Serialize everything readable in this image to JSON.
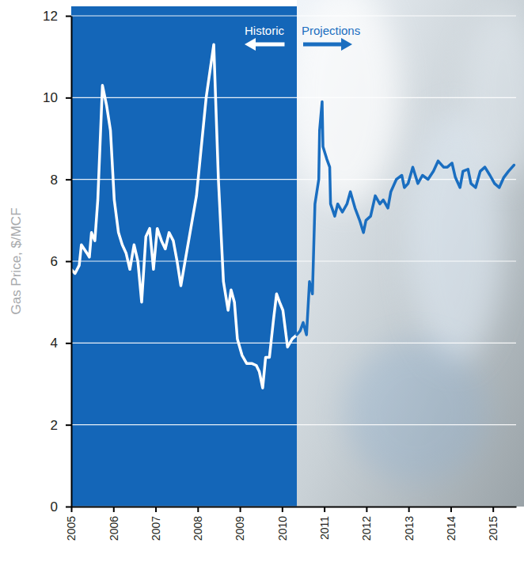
{
  "chart_data": {
    "type": "line",
    "y_label": "Gas Price, $/MCF",
    "xlim": [
      2005,
      2015.55
    ],
    "xticks": [
      2005,
      2006,
      2007,
      2008,
      2009,
      2010,
      2011,
      2012,
      2013,
      2014,
      2015
    ],
    "ylim": [
      0,
      12
    ],
    "yticks": [
      0,
      2,
      4,
      6,
      8,
      10,
      12
    ],
    "grid": true,
    "series": [
      {
        "name": "Historic",
        "color": "#ffffff",
        "x": [
          2005.0,
          2005.09,
          2005.19,
          2005.24,
          2005.37,
          2005.43,
          2005.48,
          2005.56,
          2005.63,
          2005.74,
          2005.84,
          2005.93,
          2006.02,
          2006.12,
          2006.21,
          2006.3,
          2006.39,
          2006.49,
          2006.58,
          2006.67,
          2006.77,
          2006.86,
          2006.95,
          2007.04,
          2007.14,
          2007.23,
          2007.32,
          2007.42,
          2007.51,
          2007.6,
          2007.7,
          2007.97,
          2008.2,
          2008.38,
          2008.49,
          2008.61,
          2008.72,
          2008.79,
          2008.87,
          2008.94,
          2009.05,
          2009.16,
          2009.28,
          2009.39,
          2009.46,
          2009.54,
          2009.61,
          2009.7,
          2009.8,
          2009.87,
          2009.94,
          2010.02,
          2010.13,
          2010.24,
          2010.35
        ],
        "values": [
          5.8,
          5.7,
          5.9,
          6.4,
          6.2,
          6.1,
          6.7,
          6.5,
          7.5,
          10.3,
          9.8,
          9.2,
          7.5,
          6.7,
          6.4,
          6.2,
          5.8,
          6.4,
          6.0,
          5.0,
          6.6,
          6.8,
          5.8,
          6.8,
          6.5,
          6.3,
          6.7,
          6.5,
          6.0,
          5.4,
          6.0,
          7.6,
          10.0,
          11.3,
          8.0,
          5.5,
          4.8,
          5.3,
          5.0,
          4.1,
          3.7,
          3.5,
          3.5,
          3.45,
          3.3,
          2.9,
          3.65,
          3.65,
          4.6,
          5.2,
          5.0,
          4.8,
          3.9,
          4.1,
          4.2
        ]
      },
      {
        "name": "Projections",
        "color": "#1a6ec0",
        "x": [
          2010.35,
          2010.43,
          2010.5,
          2010.58,
          2010.65,
          2010.72,
          2010.78,
          2010.87,
          2010.89,
          2010.95,
          2010.97,
          2011.06,
          2011.13,
          2011.15,
          2011.25,
          2011.32,
          2011.43,
          2011.54,
          2011.62,
          2011.73,
          2011.84,
          2011.93,
          2011.99,
          2012.1,
          2012.21,
          2012.32,
          2012.4,
          2012.51,
          2012.58,
          2012.71,
          2012.84,
          2012.9,
          2012.99,
          2013.1,
          2013.22,
          2013.33,
          2013.46,
          2013.59,
          2013.7,
          2013.83,
          2013.92,
          2014.03,
          2014.11,
          2014.22,
          2014.29,
          2014.41,
          2014.48,
          2014.59,
          2014.7,
          2014.81,
          2014.93,
          2015.04,
          2015.15,
          2015.26,
          2015.37,
          2015.5
        ],
        "values": [
          4.2,
          4.3,
          4.5,
          4.2,
          5.5,
          5.2,
          7.4,
          8.0,
          9.2,
          9.9,
          8.8,
          8.5,
          8.3,
          7.4,
          7.1,
          7.4,
          7.2,
          7.4,
          7.7,
          7.3,
          7.0,
          6.7,
          7.0,
          7.1,
          7.6,
          7.4,
          7.5,
          7.3,
          7.7,
          8.0,
          8.1,
          7.8,
          7.9,
          8.3,
          7.9,
          8.1,
          8.0,
          8.2,
          8.45,
          8.3,
          8.3,
          8.4,
          8.05,
          7.8,
          8.2,
          8.25,
          7.9,
          7.8,
          8.2,
          8.3,
          8.1,
          7.9,
          7.8,
          8.05,
          8.2,
          8.35
        ]
      }
    ]
  }
}
